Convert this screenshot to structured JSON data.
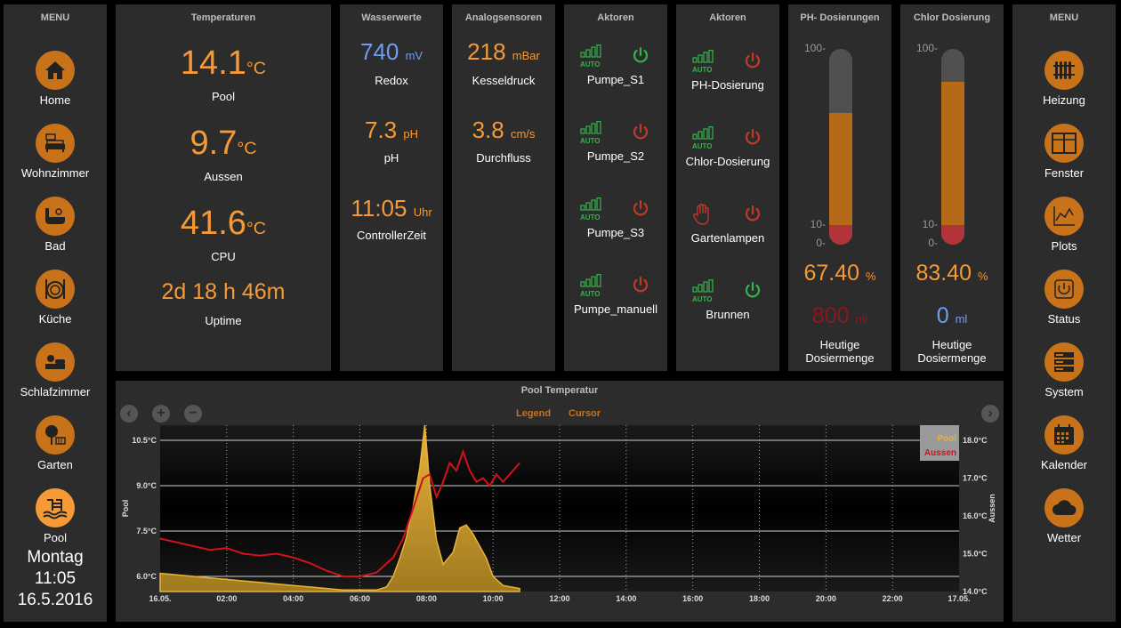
{
  "left_menu": {
    "title": "MENU",
    "items": [
      {
        "label": "Home",
        "icon": "home-icon"
      },
      {
        "label": "Wohnzimmer",
        "icon": "sofa-icon"
      },
      {
        "label": "Bad",
        "icon": "bath-icon"
      },
      {
        "label": "Küche",
        "icon": "kitchen-icon"
      },
      {
        "label": "Schlafzimmer",
        "icon": "bed-icon"
      },
      {
        "label": "Garten",
        "icon": "tree-icon"
      },
      {
        "label": "Pool",
        "icon": "pool-icon"
      }
    ],
    "day": "Montag",
    "time": "11:05",
    "date": "16.5.2016"
  },
  "temperaturen": {
    "title": "Temperaturen",
    "pool_value": "14.1",
    "pool_unit": "°C",
    "pool_label": "Pool",
    "aussen_value": "9.7",
    "aussen_unit": "°C",
    "aussen_label": "Aussen",
    "cpu_value": "41.6",
    "cpu_unit": "°C",
    "cpu_label": "CPU",
    "uptime_value": "2d 18 h 46m",
    "uptime_label": "Uptime"
  },
  "wasserwerte": {
    "title": "Wasserwerte",
    "redox_value": "740",
    "redox_unit": "mV",
    "redox_label": "Redox",
    "ph_value": "7.3",
    "ph_unit": "pH",
    "ph_label": "pH",
    "time_value": "11:05",
    "time_unit": "Uhr",
    "time_label": "ControllerZeit"
  },
  "analogsensoren": {
    "title": "Analogsensoren",
    "kessel_value": "218",
    "kessel_unit": "mBar",
    "kessel_label": "Kesseldruck",
    "flow_value": "3.8",
    "flow_unit": "cm/s",
    "flow_label": "Durchfluss"
  },
  "aktoren1": {
    "title": "Aktoren",
    "items": [
      {
        "label": "Pumpe_S1",
        "state": "on"
      },
      {
        "label": "Pumpe_S2",
        "state": "off"
      },
      {
        "label": "Pumpe_S3",
        "state": "off"
      },
      {
        "label": "Pumpe_manuell",
        "state": "off"
      }
    ],
    "auto_text": "AUTO"
  },
  "aktoren2": {
    "title": "Aktoren",
    "items": [
      {
        "label": "PH-Dosierung",
        "state": "off"
      },
      {
        "label": "Chlor-Dosierung",
        "state": "off"
      },
      {
        "label": "Gartenlampen",
        "state": "off"
      },
      {
        "label": "Brunnen",
        "state": "on"
      }
    ],
    "auto_text": "AUTO"
  },
  "ph_dosierung": {
    "title": "PH- Dosierungen",
    "tick_100": "100-",
    "tick_10": "10-",
    "tick_0": "0-",
    "level_percent": 67.4,
    "value": "67.40",
    "unit": "%",
    "amount": "800",
    "amount_unit": "ml",
    "label_1": "Heutige",
    "label_2": "Dosiermenge"
  },
  "chlor_dosierung": {
    "title": "Chlor Dosierung",
    "tick_100": "100-",
    "tick_10": "10-",
    "tick_0": "0-",
    "level_percent": 83.4,
    "value": "83.40",
    "unit": "%",
    "amount": "0",
    "amount_unit": "ml",
    "label_1": "Heutige",
    "label_2": "Dosiermenge"
  },
  "right_menu": {
    "title": "MENU",
    "items": [
      {
        "label": "Heizung",
        "icon": "radiator-icon"
      },
      {
        "label": "Fenster",
        "icon": "window-icon"
      },
      {
        "label": "Plots",
        "icon": "plot-icon"
      },
      {
        "label": "Status",
        "icon": "power-icon"
      },
      {
        "label": "System",
        "icon": "server-icon"
      },
      {
        "label": "Kalender",
        "icon": "calendar-icon"
      },
      {
        "label": "Wetter",
        "icon": "cloud-icon"
      }
    ]
  },
  "plot": {
    "title": "Pool Temperatur",
    "legend_btn": "Legend",
    "cursor_btn": "Cursor",
    "colors": {
      "pool": "#e8b23a",
      "aussen": "#d0121b",
      "accent": "#c8731a"
    }
  },
  "chart_data": {
    "type": "line",
    "title": "Pool Temperatur",
    "xlabel": "",
    "ylabel": "Pool",
    "ylabel_right": "Aussen",
    "x_ticks": [
      "16.05.",
      "02:00",
      "04:00",
      "06:00",
      "08:00",
      "10:00",
      "12:00",
      "14:00",
      "16:00",
      "18:00",
      "20:00",
      "22:00",
      "17.05."
    ],
    "y_ticks_left": [
      "6.0°C",
      "7.5°C",
      "9.0°C",
      "10.5°C"
    ],
    "y_ticks_right": [
      "14.0°C",
      "15.0°C",
      "16.0°C",
      "17.0°C",
      "18.0°C"
    ],
    "ylim_left": [
      5.5,
      11.0
    ],
    "ylim_right": [
      14.0,
      18.4
    ],
    "legend_position": "top-right",
    "grid": true,
    "series": [
      {
        "name": "Pool",
        "axis": "left",
        "type": "area",
        "x": [
          0.0,
          0.5,
          1.0,
          1.5,
          2.0,
          2.5,
          3.0,
          3.5,
          4.0,
          4.5,
          5.0,
          5.5,
          6.0,
          6.5,
          6.8,
          7.0,
          7.2,
          7.4,
          7.6,
          7.8,
          7.95,
          8.1,
          8.3,
          8.5,
          8.8,
          9.0,
          9.2,
          9.4,
          9.6,
          9.8,
          10.0,
          10.3,
          10.8
        ],
        "y": [
          6.1,
          6.05,
          6.0,
          5.95,
          5.9,
          5.85,
          5.8,
          5.75,
          5.7,
          5.65,
          5.6,
          5.55,
          5.55,
          5.55,
          5.65,
          6.0,
          6.6,
          7.3,
          8.3,
          9.6,
          11.0,
          9.0,
          7.2,
          6.4,
          6.8,
          7.6,
          7.7,
          7.4,
          7.0,
          6.6,
          6.0,
          5.7,
          5.6
        ]
      },
      {
        "name": "Aussen",
        "axis": "right",
        "type": "line",
        "x": [
          0.0,
          0.5,
          1.0,
          1.5,
          2.0,
          2.5,
          3.0,
          3.5,
          4.0,
          4.5,
          5.0,
          5.5,
          6.0,
          6.5,
          7.0,
          7.3,
          7.6,
          7.9,
          8.1,
          8.3,
          8.5,
          8.7,
          8.9,
          9.1,
          9.3,
          9.5,
          9.7,
          9.9,
          10.1,
          10.3,
          10.5,
          10.8
        ],
        "y": [
          15.4,
          15.3,
          15.2,
          15.1,
          15.15,
          15.0,
          14.95,
          15.0,
          14.9,
          14.75,
          14.55,
          14.4,
          14.4,
          14.5,
          14.9,
          15.4,
          16.2,
          17.0,
          17.1,
          16.5,
          16.9,
          17.4,
          17.2,
          17.7,
          17.2,
          16.9,
          17.0,
          16.8,
          17.1,
          16.9,
          17.1,
          17.4
        ]
      }
    ]
  }
}
